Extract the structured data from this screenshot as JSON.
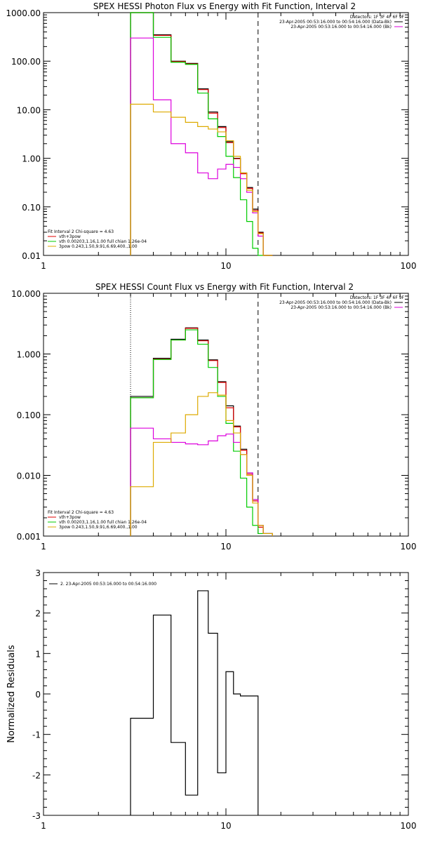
{
  "chart_data": [
    {
      "type": "line",
      "title": "SPEX HESSI Photon Flux vs Energy with Fit Function, Interval 2",
      "xlim": [
        1,
        100
      ],
      "ylim": [
        0.01,
        1000
      ],
      "xscale": "log",
      "yscale": "log",
      "xticks": [
        1,
        10,
        100
      ],
      "xtick_labels": [
        "1",
        "10",
        "100"
      ],
      "yticks": [
        0.01,
        0.1,
        1,
        10,
        100,
        1000
      ],
      "ytick_labels": [
        "0.01",
        "0.10",
        "1.00",
        "10.00",
        "100.00",
        "1000.00"
      ],
      "bin_edges": [
        3,
        4,
        5,
        6,
        7,
        8,
        9,
        10,
        11,
        12,
        13,
        14,
        15,
        16,
        18
      ],
      "vlines": [
        {
          "x": 3,
          "style": "dotted"
        },
        {
          "x": 15,
          "style": "dashed"
        }
      ],
      "series": [
        {
          "color": "#000000",
          "values": [
            1000,
            350,
            100,
            90,
            27,
            9,
            4.5,
            2.2,
            1.0,
            0.5,
            0.25,
            0.09,
            0.03,
            0.01
          ]
        },
        {
          "color": "#e00000",
          "values": [
            1000,
            340,
            98,
            88,
            26,
            8.5,
            4.3,
            2.1,
            0.98,
            0.48,
            0.24,
            0.085,
            0.029,
            0.01
          ]
        },
        {
          "color": "#00cc00",
          "values": [
            1000,
            310,
            95,
            86,
            22,
            6.5,
            2.8,
            1.1,
            0.4,
            0.14,
            0.05,
            0.014,
            0.01,
            0.01
          ]
        },
        {
          "color": "#dd00dd",
          "values": [
            300,
            16,
            2.0,
            1.3,
            0.5,
            0.38,
            0.6,
            0.75,
            0.65,
            0.38,
            0.2,
            0.075,
            0.025,
            0.01
          ]
        },
        {
          "color": "#ddaa00",
          "values": [
            13,
            9,
            7,
            5.5,
            4.5,
            4.0,
            3.5,
            2.3,
            1.1,
            0.5,
            0.22,
            0.08,
            0.028,
            0.01
          ]
        }
      ],
      "legend_top": {
        "detectors": "Detectors: 1F 3F 4F 6F 9F",
        "items": [
          {
            "text": "23-Apr-2005 00:53:16.000 to 00:54:16.000 (Data-Bk)",
            "color": "#000000"
          },
          {
            "text": "23-Apr-2005 00:53:16.000 to 00:54:16.000 (Bk)",
            "color": "#dd00dd"
          }
        ]
      },
      "legend_bottom": {
        "header": "Fit Interval 2   Chi-square = 4.63",
        "items": [
          {
            "text": "vth+3pow",
            "color": "#e00000"
          },
          {
            "text": "vth 0.00203,1.16,1.00  full chian 1.26e-04",
            "color": "#00cc00"
          },
          {
            "text": "3pow 0.243,1.50,9.91,6.69,400.,1.00",
            "color": "#ddaa00"
          }
        ]
      }
    },
    {
      "type": "line",
      "title": "SPEX HESSI Count Flux vs Energy with Fit Function, Interval 2",
      "xlim": [
        1,
        100
      ],
      "ylim": [
        0.001,
        10
      ],
      "xscale": "log",
      "yscale": "log",
      "xticks": [
        1,
        10,
        100
      ],
      "xtick_labels": [
        "1",
        "10",
        "100"
      ],
      "yticks": [
        0.001,
        0.01,
        0.1,
        1,
        10
      ],
      "ytick_labels": [
        "0.001",
        "0.010",
        "0.100",
        "1.000",
        "10.000"
      ],
      "bin_edges": [
        3,
        4,
        5,
        6,
        7,
        8,
        9,
        10,
        11,
        12,
        13,
        14,
        15,
        16,
        18
      ],
      "vlines": [
        {
          "x": 3,
          "style": "dotted"
        },
        {
          "x": 15,
          "style": "dashed"
        }
      ],
      "series": [
        {
          "color": "#000000",
          "values": [
            0.2,
            0.85,
            1.75,
            2.7,
            1.7,
            0.8,
            0.35,
            0.14,
            0.065,
            0.027,
            0.011,
            0.004,
            0.0015,
            0.0011
          ]
        },
        {
          "color": "#e00000",
          "values": [
            0.19,
            0.82,
            1.7,
            2.65,
            1.65,
            0.78,
            0.34,
            0.13,
            0.063,
            0.026,
            0.0105,
            0.0038,
            0.0014,
            0.0011
          ]
        },
        {
          "color": "#00cc00",
          "values": [
            0.19,
            0.81,
            1.7,
            2.5,
            1.45,
            0.6,
            0.2,
            0.072,
            0.025,
            0.009,
            0.003,
            0.0015,
            0.0011,
            0.0011
          ]
        },
        {
          "color": "#dd00dd",
          "values": [
            0.06,
            0.04,
            0.035,
            0.033,
            0.032,
            0.037,
            0.045,
            0.048,
            0.035,
            0.022,
            0.011,
            0.004,
            0.0015,
            0.0011
          ]
        },
        {
          "color": "#ddaa00",
          "values": [
            0.0065,
            0.035,
            0.05,
            0.1,
            0.2,
            0.23,
            0.21,
            0.08,
            0.05,
            0.022,
            0.01,
            0.0035,
            0.0015,
            0.0011
          ]
        }
      ],
      "legend_top": {
        "detectors": "Detectors: 1F 3F 4F 6F 9F",
        "items": [
          {
            "text": "23-Apr-2005 00:53:16.000 to 00:54:16.000 (Data-Bk)",
            "color": "#000000"
          },
          {
            "text": "23-Apr-2005 00:53:16.000 to 00:54:16.000 (Bk)",
            "color": "#dd00dd"
          }
        ]
      },
      "legend_bottom": {
        "header": "Fit Interval 2   Chi-square = 4.63",
        "items": [
          {
            "text": "vth+3pow",
            "color": "#e00000"
          },
          {
            "text": "vth 0.00203,1.16,1.00  full chian 1.26e-04",
            "color": "#00cc00"
          },
          {
            "text": "3pow 0.243,1.50,9.91,6.69,400.,1.00",
            "color": "#ddaa00"
          }
        ]
      }
    },
    {
      "type": "line",
      "title": "",
      "ylabel": "Normalized Residuals",
      "xlim": [
        1,
        100
      ],
      "ylim": [
        -3,
        3
      ],
      "xscale": "log",
      "yscale": "linear",
      "xticks": [
        1,
        10,
        100
      ],
      "xtick_labels": [
        "1",
        "10",
        "100"
      ],
      "yticks": [
        -3,
        -2,
        -1,
        0,
        1,
        2,
        3
      ],
      "ytick_labels": [
        "-3",
        "-2",
        "-1",
        "0",
        "1",
        "2",
        "3"
      ],
      "bin_edges": [
        3,
        4,
        5,
        6,
        7,
        8,
        9,
        10,
        11,
        12,
        13,
        14,
        15
      ],
      "series": [
        {
          "color": "#000000",
          "values": [
            -0.6,
            1.95,
            -1.2,
            -2.5,
            2.55,
            1.5,
            -1.95,
            0.55,
            0.0,
            -0.05,
            -0.05,
            -0.05
          ]
        }
      ],
      "legend_top": {
        "items": [
          {
            "text": "2. 23-Apr-2005 00:53:16.000 to 00:54:16.000",
            "color": "#000000"
          }
        ]
      }
    }
  ]
}
